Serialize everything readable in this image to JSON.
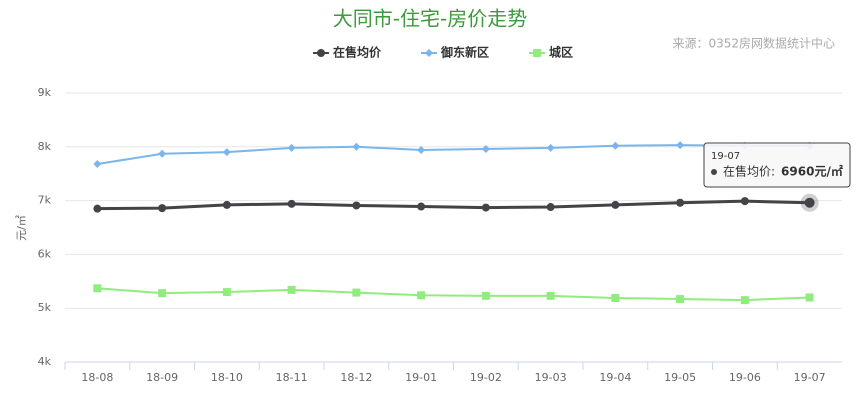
{
  "chart_data": {
    "type": "line",
    "title": "大同市-住宅-房价走势",
    "source": "来源：0352房网数据统计中心",
    "y_label": "元/㎡",
    "categories": [
      "18-08",
      "18-09",
      "18-10",
      "18-11",
      "18-12",
      "19-01",
      "19-02",
      "19-03",
      "19-04",
      "19-05",
      "19-06",
      "19-07"
    ],
    "series": [
      {
        "name": "在售均价",
        "color": "#434348",
        "marker": "circle",
        "values": [
          6850,
          6860,
          6920,
          6940,
          6910,
          6890,
          6870,
          6880,
          6920,
          6960,
          6990,
          6960
        ]
      },
      {
        "name": "御东新区",
        "color": "#7cb5ec",
        "marker": "diamond",
        "values": [
          7680,
          7870,
          7900,
          7980,
          8000,
          7940,
          7960,
          7980,
          8020,
          8030,
          8020,
          8020
        ]
      },
      {
        "name": "城区",
        "color": "#90ed7d",
        "marker": "square",
        "values": [
          5370,
          5280,
          5300,
          5340,
          5290,
          5240,
          5230,
          5230,
          5190,
          5170,
          5150,
          5200
        ]
      }
    ],
    "ylim": [
      4000,
      9000
    ],
    "yticks": [
      {
        "value": 4000,
        "label": "4k"
      },
      {
        "value": 5000,
        "label": "5k"
      },
      {
        "value": 6000,
        "label": "6k"
      },
      {
        "value": 7000,
        "label": "7k"
      },
      {
        "value": 8000,
        "label": "8k"
      },
      {
        "value": 9000,
        "label": "9k"
      }
    ],
    "grid": true,
    "legend": "top",
    "tooltip": {
      "label": "在售均价:",
      "value_label": "6960元/㎡"
    }
  }
}
